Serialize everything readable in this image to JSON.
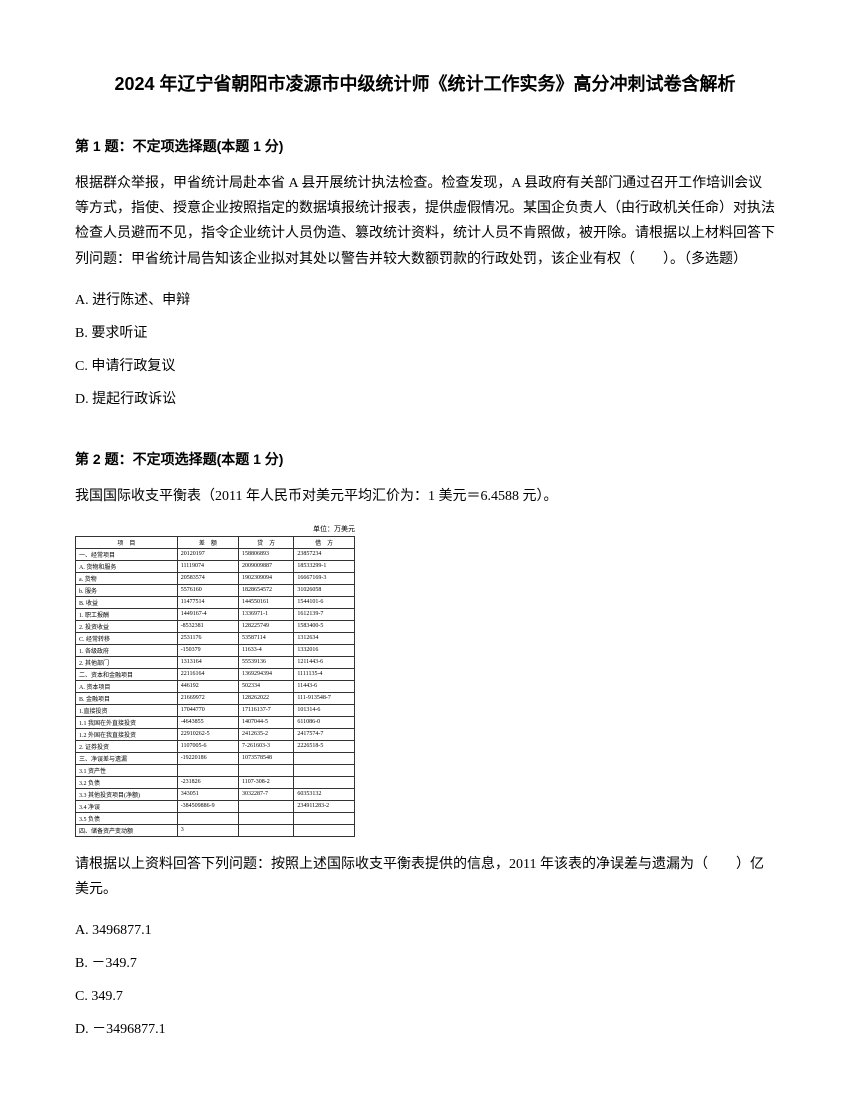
{
  "title": "2024 年辽宁省朝阳市凌源市中级统计师《统计工作实务》高分冲刺试卷含解析",
  "q1": {
    "header": "第 1 题：不定项选择题(本题 1 分)",
    "text": "根据群众举报，甲省统计局赴本省 A 县开展统计执法检查。检查发现，A 县政府有关部门通过召开工作培训会议等方式，指使、授意企业按照指定的数据填报统计报表，提供虚假情况。某国企负责人（由行政机关任命）对执法检查人员避而不见，指令企业统计人员伪造、篡改统计资料，统计人员不肯照做，被开除。请根据以上材料回答下列问题：甲省统计局告知该企业拟对其处以警告并较大数额罚款的行政处罚，该企业有权（　　）。（多选题）",
    "options": {
      "a": "A. 进行陈述、申辩",
      "b": "B. 要求听证",
      "c": "C. 申请行政复议",
      "d": "D. 提起行政诉讼"
    }
  },
  "q2": {
    "header": "第 2 题：不定项选择题(本题 1 分)",
    "text": "我国国际收支平衡表（2011 年人民币对美元平均汇价为：1 美元＝6.4588 元）。",
    "table": {
      "caption": "单位：万美元",
      "headers": [
        "项　目",
        "差　额",
        "贷　方",
        "借　方"
      ],
      "rows": [
        [
          "一、经常项目",
          "20120197",
          "158806893",
          "23857234"
        ],
        [
          "A. 货物和服务",
          "11119074",
          "2009009887",
          "18533299-1"
        ],
        [
          "a. 货物",
          "20583574",
          "1902309094",
          "16667169-3"
        ],
        [
          "b. 服务",
          "5576160",
          "1828654572",
          "31026058"
        ],
        [
          "B. 收益",
          "11477514",
          "144550161",
          "1544101-6"
        ],
        [
          "1. 职工报酬",
          "1449167-4",
          "1336971-1",
          "1612139-7"
        ],
        [
          "2. 投资收益",
          "-8532381",
          "128225749",
          "1583400-5"
        ],
        [
          "C. 经常转移",
          "2531176",
          "53587114",
          "1312634"
        ],
        [
          "1. 各级政府",
          "-150379",
          "11633-4",
          "1332016"
        ],
        [
          "2. 其他部门",
          "1313164",
          "55539136",
          "1211443-6"
        ],
        [
          "二、资本和金融项目",
          "22116164",
          "1369294394",
          "1111135-4"
        ],
        [
          "A. 资本项目",
          "446192",
          "502334",
          "11443-6"
        ],
        [
          "B. 金融项目",
          "21669972",
          "128262022",
          "111-913548-7"
        ],
        [
          "1.直接投资",
          "17044770",
          "17116137-7",
          "101314-6"
        ],
        [
          "1.1 我国在外直接投资",
          "-4643855",
          "1407044-5",
          "611086-0"
        ],
        [
          "1.2 外国在我直接投资",
          "22910262-5",
          "2412635-2",
          "2417574-7"
        ],
        [
          "2. 证券投资",
          "1107005-6",
          "7-261603-3",
          "2226518-5"
        ],
        [
          "三、净误差与遗漏",
          "-19220186",
          "1073578548",
          ""
        ],
        [
          "3.1 资产性",
          "",
          "",
          ""
        ],
        [
          "3.2 负债",
          "-231826",
          "1107-308-2",
          ""
        ],
        [
          "3.3 其他投资项目(净额)",
          "343051",
          "3032287-7",
          "60353132"
        ],
        [
          "3.4 净误",
          "-384509886-9",
          "",
          "234911283-2"
        ],
        [
          "3.5 负债",
          "",
          "",
          ""
        ],
        [
          "四、储备资产变动额",
          "3",
          "",
          ""
        ]
      ]
    },
    "followup": "请根据以上资料回答下列问题：按照上述国际收支平衡表提供的信息，2011 年该表的净误差与遗漏为（　　）亿美元。",
    "options": {
      "a": "A. 3496877.1",
      "b": "B. －349.7",
      "c": "C. 349.7",
      "d": "D. －3496877.1"
    }
  }
}
